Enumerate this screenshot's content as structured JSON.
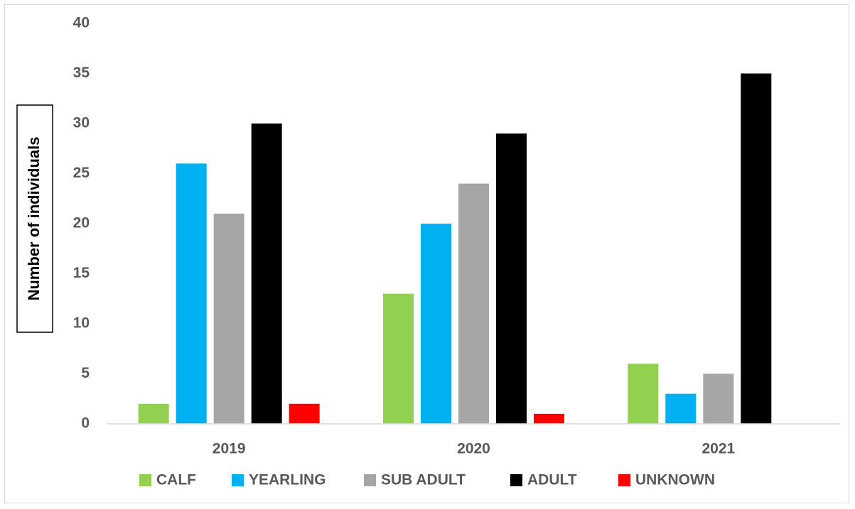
{
  "chart_data": {
    "type": "bar",
    "title": "",
    "xlabel": "",
    "ylabel": "Number of individuals",
    "categories": [
      "2019",
      "2020",
      "2021"
    ],
    "ylim": [
      0,
      40
    ],
    "yticks": [
      0,
      5,
      10,
      15,
      20,
      25,
      30,
      35,
      40
    ],
    "grid": false,
    "legend_position": "bottom",
    "series": [
      {
        "name": "CALF",
        "color": "#92d050",
        "values": [
          2,
          13,
          6
        ]
      },
      {
        "name": "YEARLING",
        "color": "#00b0f0",
        "values": [
          26,
          20,
          3
        ]
      },
      {
        "name": "SUB ADULT",
        "color": "#a6a6a6",
        "values": [
          21,
          24,
          5
        ]
      },
      {
        "name": "ADULT",
        "color": "#000000",
        "values": [
          30,
          29,
          35
        ]
      },
      {
        "name": "UNKNOWN",
        "color": "#ff0000",
        "values": [
          2,
          1,
          0
        ]
      }
    ]
  }
}
